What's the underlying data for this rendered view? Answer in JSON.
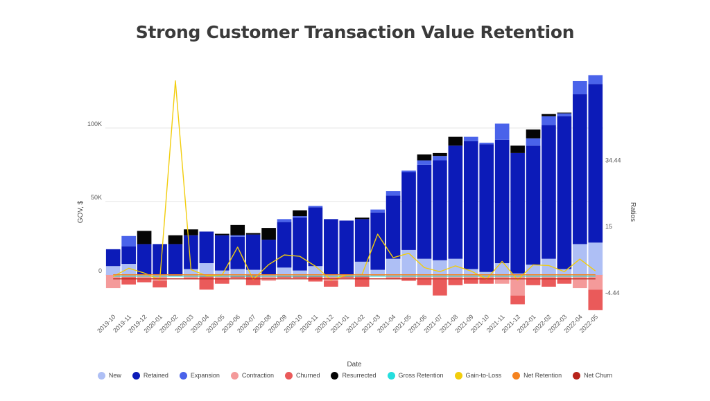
{
  "chart_data": {
    "type": "bar",
    "title": "Strong Customer Transaction Value Retention",
    "xlabel": "Date",
    "ylabel": "GOV, $",
    "y2label": "Ratios",
    "ylim": [
      -25000,
      140000
    ],
    "y2lim": [
      -9.91,
      61.1
    ],
    "yticks": [
      {
        "value": 0,
        "label": "0"
      },
      {
        "value": 50000,
        "label": "50K"
      },
      {
        "value": 100000,
        "label": "100K"
      }
    ],
    "y2ticks": [
      {
        "value": -4.44,
        "label": "-4.44"
      },
      {
        "value": 15,
        "label": "15"
      },
      {
        "value": 34.44,
        "label": "34.44"
      }
    ],
    "grid": true,
    "legend_position": "bottom",
    "categories": [
      "2019-10",
      "2019-11",
      "2019-12",
      "2020-01",
      "2020-02",
      "2020-03",
      "2020-04",
      "2020-05",
      "2020-06",
      "2020-07",
      "2020-08",
      "2020-09",
      "2020-10",
      "2020-11",
      "2020-12",
      "2021-01",
      "2021-02",
      "2021-03",
      "2021-04",
      "2021-05",
      "2021-06",
      "2021-07",
      "2021-08",
      "2021-09",
      "2021-10",
      "2021-11",
      "2021-12",
      "2022-01",
      "2022-02",
      "2022-03",
      "2022-04",
      "2022-05"
    ],
    "bar_series": [
      {
        "name": "New",
        "color": "#aebff5",
        "values": [
          6000,
          7500,
          0,
          0,
          0,
          4000,
          8000,
          3000,
          4000,
          3500,
          0,
          5000,
          3000,
          6000,
          0,
          0,
          9000,
          3500,
          11000,
          17000,
          11000,
          10000,
          11000,
          4000,
          2000,
          8000,
          1000,
          7000,
          11000,
          4000,
          21000,
          22000
        ]
      },
      {
        "name": "Retained",
        "color": "#0c1bb8",
        "values": [
          11500,
          12000,
          21000,
          21000,
          21000,
          23000,
          21500,
          24000,
          22000,
          24000,
          24000,
          31000,
          36000,
          40000,
          38000,
          37000,
          29000,
          39000,
          43000,
          53000,
          64000,
          68000,
          77000,
          87000,
          87000,
          84000,
          82000,
          81000,
          91000,
          104000,
          102000,
          108000
        ]
      },
      {
        "name": "Expansion",
        "color": "#4a63ea",
        "values": [
          0,
          7000,
          0,
          0,
          0,
          0,
          0,
          0,
          1000,
          0,
          0,
          2000,
          1000,
          1000,
          0,
          0,
          0,
          2000,
          3000,
          1000,
          3000,
          3000,
          0,
          3000,
          1000,
          11000,
          0,
          5000,
          6000,
          2000,
          9000,
          6000
        ]
      },
      {
        "name": "Resurrected",
        "color": "#050505",
        "values": [
          0,
          0,
          9000,
          0,
          6000,
          4000,
          0,
          1000,
          7000,
          1000,
          8000,
          0,
          4000,
          0,
          0,
          0,
          1000,
          0,
          0,
          0,
          4000,
          2000,
          6000,
          0,
          0,
          0,
          5000,
          6000,
          1500,
          500,
          0,
          0
        ]
      },
      {
        "name": "Contraction",
        "color": "#f49a9a",
        "values": [
          -9000,
          -1500,
          -3000,
          -4000,
          0,
          -3000,
          -1000,
          -2000,
          -1000,
          0,
          -4000,
          -1000,
          -1000,
          -500,
          -4000,
          -1000,
          -1000,
          -1000,
          -3000,
          -3000,
          -3000,
          -3000,
          -3000,
          -2000,
          -2000,
          -6000,
          -14000,
          -3000,
          -2000,
          -2000,
          -9000,
          -10000
        ]
      },
      {
        "name": "Churned",
        "color": "#ea5a5a",
        "values": [
          0,
          -5000,
          -2000,
          -4500,
          -1000,
          0,
          -9000,
          -4000,
          -1000,
          -7000,
          0,
          -1000,
          -1000,
          -4000,
          -4000,
          -1000,
          -7000,
          0,
          0,
          -1000,
          -4000,
          -11000,
          -4000,
          -4000,
          -4000,
          0,
          -6000,
          -4000,
          -6000,
          -4000,
          0,
          -14000
        ]
      }
    ],
    "line_series": [
      {
        "name": "Gross Retention",
        "color": "#25dede",
        "axis": "y2",
        "values": [
          0.5,
          0.5,
          0.5,
          0.5,
          0.5,
          0.5,
          0.5,
          0.5,
          0.5,
          0.5,
          0.5,
          0.5,
          0.5,
          0.5,
          0.5,
          0.5,
          0.5,
          0.5,
          0.5,
          0.5,
          0.5,
          0.5,
          0.5,
          0.5,
          0.5,
          0.5,
          0.5,
          0.5,
          0.5,
          0.5,
          0.5,
          0.5
        ]
      },
      {
        "name": "Gain-to-Loss",
        "color": "#f2cd0c",
        "axis": "y2",
        "values": [
          0.4,
          2.8,
          1.4,
          -0.6,
          57.7,
          2.4,
          0.6,
          0.8,
          9.0,
          -0.5,
          3.9,
          6.7,
          6.3,
          3.4,
          -0.6,
          0.8,
          1.0,
          12.8,
          5.9,
          7.2,
          3.0,
          1.8,
          3.5,
          2.0,
          -0.4,
          4.8,
          -0.6,
          3.8,
          3.6,
          1.8,
          5.5,
          2.0
        ]
      },
      {
        "name": "Net Retention",
        "color": "#f5831f",
        "axis": "y2",
        "values": [
          0.9,
          0.9,
          0.9,
          0.9,
          0.9,
          0.9,
          0.9,
          0.9,
          0.9,
          0.9,
          0.9,
          0.9,
          0.9,
          0.9,
          0.9,
          0.9,
          0.9,
          0.9,
          0.9,
          0.9,
          0.9,
          0.9,
          0.9,
          0.9,
          0.9,
          0.9,
          0.9,
          0.9,
          0.9,
          0.9,
          0.9,
          0.9
        ]
      },
      {
        "name": "Net Churn",
        "color": "#b8241b",
        "axis": "y2",
        "values": [
          -0.3,
          -0.3,
          -0.3,
          -0.3,
          -0.3,
          -0.3,
          -0.3,
          -0.3,
          -0.3,
          -0.3,
          -0.3,
          -0.3,
          -0.3,
          -0.3,
          -0.3,
          -0.3,
          -0.3,
          -0.3,
          -0.3,
          -0.3,
          -0.3,
          -0.3,
          -0.3,
          -0.3,
          -0.3,
          -0.3,
          -0.3,
          -0.3,
          -0.3,
          -0.3,
          -0.3,
          -0.3
        ]
      }
    ],
    "legend": [
      {
        "name": "New",
        "color": "#aebff5"
      },
      {
        "name": "Retained",
        "color": "#0c1bb8"
      },
      {
        "name": "Expansion",
        "color": "#4a63ea"
      },
      {
        "name": "Contraction",
        "color": "#f49a9a"
      },
      {
        "name": "Churned",
        "color": "#ea5a5a"
      },
      {
        "name": "Resurrected",
        "color": "#050505"
      },
      {
        "name": "Gross Retention",
        "color": "#25dede"
      },
      {
        "name": "Gain-to-Loss",
        "color": "#f2cd0c"
      },
      {
        "name": "Net Retention",
        "color": "#f5831f"
      },
      {
        "name": "Net Churn",
        "color": "#b8241b"
      }
    ]
  }
}
